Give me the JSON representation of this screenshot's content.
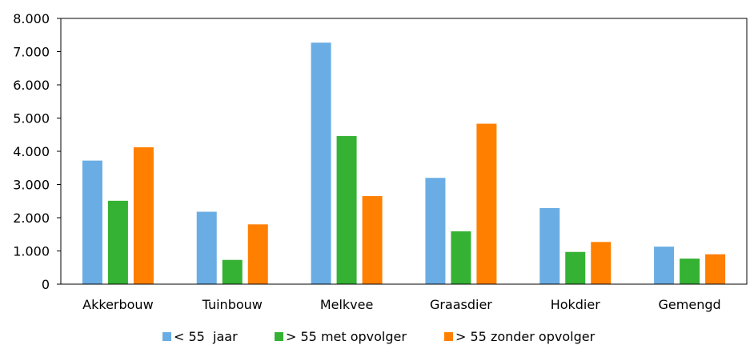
{
  "chart_data": {
    "type": "bar",
    "title": "",
    "xlabel": "",
    "ylabel": "",
    "ylim": [
      0,
      8000
    ],
    "yticks": [
      0,
      1000,
      2000,
      3000,
      4000,
      5000,
      6000,
      7000,
      8000
    ],
    "ytick_labels": [
      "0",
      "1.000",
      "2.000",
      "3.000",
      "4.000",
      "5.000",
      "6.000",
      "7.000",
      "8.000"
    ],
    "grid": false,
    "legend_position": "bottom",
    "categories": [
      "Akkerbouw",
      "Tuinbouw",
      "Melkvee",
      "Graasdier",
      "Hokdier",
      "Gemengd"
    ],
    "series": [
      {
        "name": "< 55  jaar",
        "color": "#6aade4",
        "values": [
          3720,
          2180,
          7270,
          3200,
          2290,
          1130
        ]
      },
      {
        "name": "> 55 met opvolger",
        "color": "#35b233",
        "values": [
          2510,
          730,
          4460,
          1590,
          970,
          770
        ]
      },
      {
        "name": "> 55 zonder opvolger",
        "color": "#ff7f00",
        "values": [
          4120,
          1800,
          2650,
          4830,
          1270,
          900
        ]
      }
    ]
  }
}
